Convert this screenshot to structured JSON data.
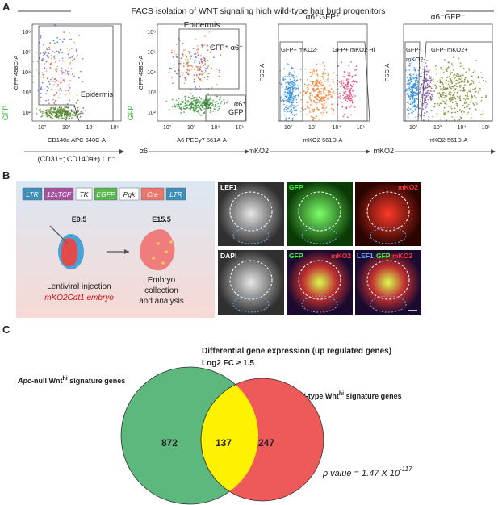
{
  "panel_labels": [
    "A",
    "B",
    "C"
  ],
  "facs": {
    "title": "FACS isolation of  WNT signaling high wild-type hair bud progenitors",
    "lineage_note": "(CD31+; CD140a+) Lin⁻",
    "plots": [
      {
        "y_label": "GFP 488C-A",
        "y_axis": "GFP",
        "x_label": "CD140a APC 640C-A",
        "gates": [
          "Epidermis"
        ],
        "x_ticks": [
          "10²",
          "10³",
          "10⁴",
          "10⁵"
        ],
        "y_ticks": [
          "10⁶",
          "10⁵",
          "10⁴",
          "10³",
          "10²"
        ]
      },
      {
        "title": "Epidermis",
        "y_label": "GFP 488C-A",
        "y_axis": "GFP",
        "x_label": "A6 PECy7 561A-A",
        "x_axis": "α6",
        "gates": [
          "GFP⁺ α6⁺",
          "α6⁺",
          "GFP⁺"
        ],
        "x_ticks": [
          "10²",
          "10³",
          "10⁴",
          "10⁵"
        ],
        "y_ticks": [
          "10⁶",
          "10⁵",
          "10⁴",
          "10³",
          "10²"
        ]
      },
      {
        "title": "α6⁺GFP⁺",
        "y_label": "FSC-A",
        "x_label": "mKO2 561D-A",
        "x_axis": "mKO2",
        "gates": [
          "GFP+ mKO2-",
          "GFP+ mKO2 Hi"
        ],
        "x_ticks": [
          "10²",
          "10³",
          "10⁴",
          "10⁵"
        ]
      },
      {
        "title": "α6⁺GFP⁻",
        "y_label": "FSC-A",
        "x_label": "mKO2 561D-A",
        "x_axis": "mKO2",
        "gates": [
          "GFP-",
          "mKO2-",
          "GFP- mKO2+"
        ],
        "x_ticks": [
          "10²",
          "10³",
          "10⁴",
          "10⁵"
        ]
      }
    ]
  },
  "construct": [
    "LTR",
    "12xTCF",
    "TK",
    "EGFP",
    "Pgk",
    "Cre",
    "LTR"
  ],
  "embryo": {
    "stage1": "E9.5",
    "stage2": "E15.5",
    "injection": "Lentiviral injection",
    "strain": "mKO2Cdt1 embryo",
    "collection1": "Embryo",
    "collection2": "collection",
    "collection3": "and analysis"
  },
  "images": {
    "t1": "LEF1",
    "t2": "GFP",
    "t3": "mKO2",
    "t4": "DAPI",
    "t5a": "GFP",
    "t5b": "mKO2",
    "t6a": "LEF1",
    "t6b": "GFP",
    "t6c": "mKO2"
  },
  "venn": {
    "title1": "Differential gene expression (up regulated genes)",
    "title2": "Log2 FC ≥ 1.5",
    "left_italic": "Apc",
    "left_rest": "-null Wnt",
    "left_sup": "hi",
    "left_end": " signature genes",
    "right_rest": "Wild-type Wnt",
    "right_sup": "hi",
    "right_end": " signature genes",
    "left_count": "872",
    "overlap_count": "137",
    "right_count": "247",
    "p_text": "p value = 1.47 X 10",
    "p_sup": "-117"
  }
}
